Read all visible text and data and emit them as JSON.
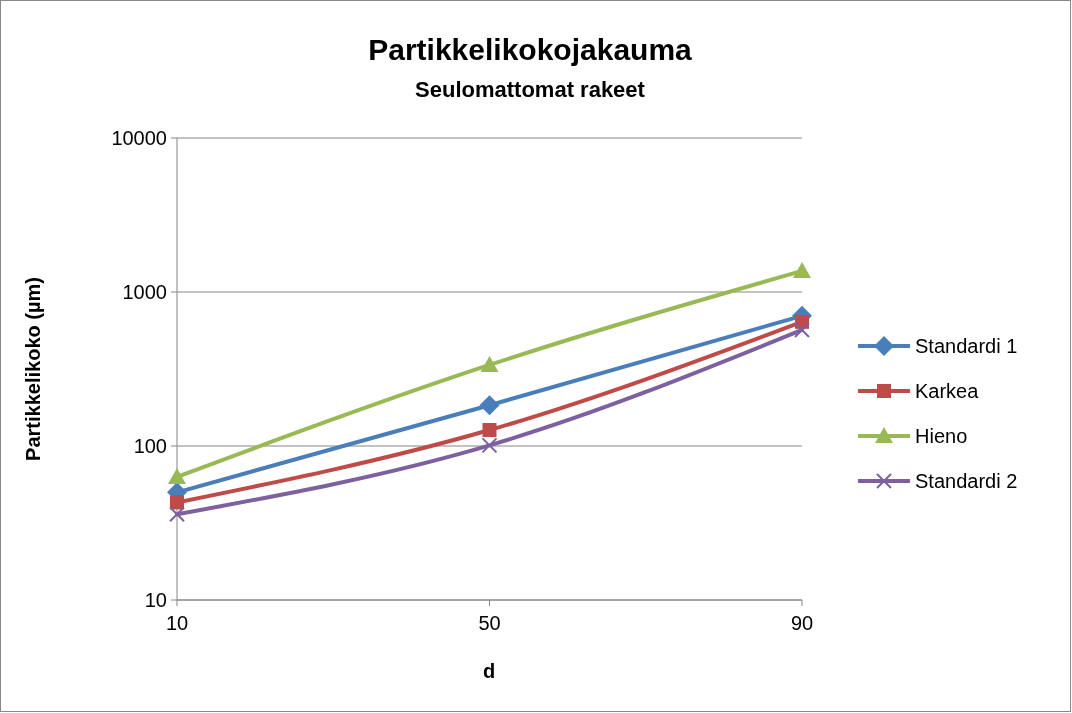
{
  "chart_data": {
    "type": "line",
    "title": "Partikkelikokojakauma",
    "subtitle": "Seulomattomat rakeet",
    "xlabel": "d",
    "ylabel": "Partikkelikoko (µm)",
    "categories": [
      "10",
      "50",
      "90"
    ],
    "series": [
      {
        "name": "Standardi 1",
        "color": "#4a7ebb",
        "marker": "diamond",
        "values": [
          50,
          184,
          700
        ]
      },
      {
        "name": "Karkea",
        "color": "#be4b48",
        "marker": "square",
        "values": [
          43,
          127,
          640
        ]
      },
      {
        "name": "Hieno",
        "color": "#98b954",
        "marker": "triangle",
        "values": [
          63,
          336,
          1370
        ]
      },
      {
        "name": "Standardi 2",
        "color": "#7d60a0",
        "marker": "cross",
        "values": [
          36,
          101,
          567
        ]
      }
    ],
    "log": "y",
    "ylim": [
      10,
      10000
    ],
    "yticks": [
      10,
      100,
      1000,
      10000
    ],
    "grid": "y",
    "legend": "right",
    "line_style": "solid"
  }
}
